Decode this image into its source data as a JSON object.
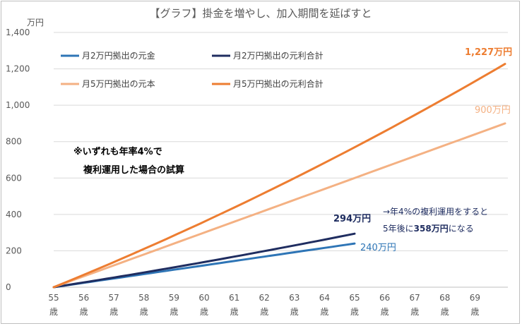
{
  "chart_data": {
    "type": "line",
    "title": "【グラフ】掛金を増やし、加入期間を延ばすと",
    "unit_label": "万円",
    "ylim": [
      0,
      1400
    ],
    "y_ticks": [
      0,
      200,
      400,
      600,
      800,
      1000,
      1200,
      1400
    ],
    "y_tick_labels": [
      "0",
      "200",
      "400",
      "600",
      "800",
      "1,000",
      "1,200",
      "1,400"
    ],
    "x": [
      55,
      56,
      57,
      58,
      59,
      60,
      61,
      62,
      63,
      64,
      65,
      66,
      67,
      68,
      69,
      70
    ],
    "x_ticks": [
      55,
      56,
      57,
      58,
      59,
      60,
      61,
      62,
      63,
      64,
      65,
      66,
      67,
      68,
      69
    ],
    "x_tick_age_suffix": "歳",
    "series": [
      {
        "name": "月2万円拠出の元金",
        "color": "#2e75b6",
        "x_start": 55,
        "x_end": 65,
        "start": 0,
        "end": 240,
        "curve": 0
      },
      {
        "name": "月2万円拠出の元利合計",
        "color": "#1f2d60",
        "x_start": 55,
        "x_end": 65,
        "start": 0,
        "end": 294,
        "curve": 0.12
      },
      {
        "name": "月5万円拠出の元本",
        "color": "#f4b183",
        "x_start": 55,
        "x_end": 70,
        "start": 0,
        "end": 900,
        "curve": 0
      },
      {
        "name": "月5万円拠出の元利合計",
        "color": "#ed7d31",
        "x_start": 55,
        "x_end": 70,
        "start": 0,
        "end": 1227,
        "curve": 0.18
      }
    ],
    "annotations": {
      "end_2_principal": "240万円",
      "end_2_total": "294万円",
      "end_5_principal": "900万円",
      "end_5_total": "1,227万円",
      "note_line1": "※いずれも年率4%で",
      "note_line2": "複利運用した場合の試算",
      "callout_line1": "→年4%の複利運用をすると",
      "callout_line2_pre": "5年後に",
      "callout_line2_bold": "358万円",
      "callout_line2_post": "になる"
    }
  }
}
